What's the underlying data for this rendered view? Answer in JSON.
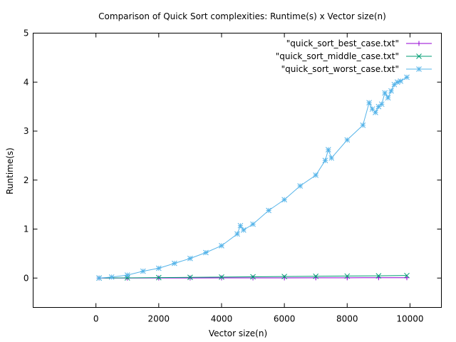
{
  "chart_data": {
    "type": "line",
    "title": "Comparison of Quick Sort complexities: Runtime(s) x Vector size(n)",
    "xlabel": "Vector size(n)",
    "ylabel": "Runtime(s)",
    "xlim": [
      -2000,
      11000
    ],
    "ylim": [
      -0.6,
      5
    ],
    "xticks": [
      0,
      2000,
      4000,
      6000,
      8000,
      10000
    ],
    "yticks": [
      0,
      1,
      2,
      3,
      4,
      5
    ],
    "grid": false,
    "legend_position": "top-right",
    "series": [
      {
        "name": "\"quick_sort_best_case.txt\"",
        "color": "#9400d3",
        "marker": "plus",
        "x": [
          100,
          1000,
          2000,
          3000,
          4000,
          5000,
          6000,
          7000,
          8000,
          9000,
          9900
        ],
        "y": [
          0,
          0.0007,
          0.0015,
          0.0022,
          0.003,
          0.0037,
          0.0045,
          0.0053,
          0.006,
          0.0068,
          0.0075
        ]
      },
      {
        "name": "\"quick_sort_middle_case.txt\"",
        "color": "#009e73",
        "marker": "cross",
        "x": [
          100,
          1000,
          2000,
          3000,
          4000,
          5000,
          6000,
          7000,
          8000,
          9000,
          9900
        ],
        "y": [
          0.001,
          0.004,
          0.009,
          0.014,
          0.02,
          0.025,
          0.031,
          0.036,
          0.041,
          0.046,
          0.052
        ]
      },
      {
        "name": "\"quick_sort_worst_case.txt\"",
        "color": "#56b4e9",
        "marker": "star",
        "x": [
          100,
          500,
          1000,
          1500,
          2000,
          2500,
          3000,
          3500,
          4000,
          4500,
          4600,
          4700,
          5000,
          5500,
          6000,
          6500,
          7000,
          7300,
          7400,
          7500,
          8000,
          8500,
          8700,
          8800,
          8900,
          9000,
          9100,
          9200,
          9300,
          9400,
          9500,
          9600,
          9700,
          9900
        ],
        "y": [
          0.0,
          0.02,
          0.06,
          0.14,
          0.2,
          0.3,
          0.4,
          0.52,
          0.66,
          0.9,
          1.07,
          0.98,
          1.1,
          1.38,
          1.6,
          1.88,
          2.1,
          2.4,
          2.62,
          2.45,
          2.82,
          3.12,
          3.58,
          3.45,
          3.38,
          3.5,
          3.55,
          3.78,
          3.68,
          3.82,
          3.95,
          4.0,
          4.02,
          4.1
        ]
      }
    ]
  }
}
